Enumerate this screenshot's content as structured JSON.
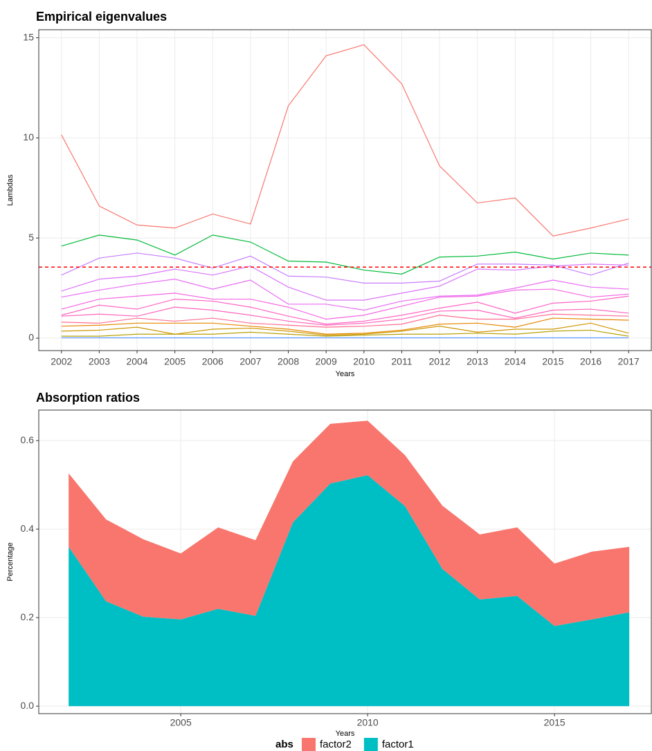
{
  "chart_data": [
    {
      "type": "line",
      "title": "Empirical eigenvalues",
      "x_label": "Years",
      "y_label": "Lambdas",
      "categories": [
        "2002",
        "2003",
        "2004",
        "2005",
        "2006",
        "2007",
        "2008",
        "2009",
        "2010",
        "2011",
        "2012",
        "2013",
        "2014",
        "2015",
        "2016",
        "2017"
      ],
      "ylim": [
        -0.62,
        15.4
      ],
      "yticks": [
        0,
        5,
        10,
        15
      ],
      "grid": true,
      "reference_line": {
        "value": 3.55,
        "color": "#FF0000"
      },
      "series": [
        {
          "color": "#F8766D",
          "values": [
            10.15,
            6.6,
            5.65,
            5.5,
            6.2,
            5.7,
            11.6,
            14.1,
            14.65,
            12.7,
            8.6,
            6.75,
            7.0,
            5.1,
            5.5,
            5.95
          ]
        },
        {
          "color": "#00BA38",
          "values": [
            4.6,
            5.15,
            4.9,
            4.15,
            5.15,
            4.8,
            3.85,
            3.8,
            3.4,
            3.2,
            4.05,
            4.1,
            4.3,
            3.95,
            4.25,
            4.15
          ]
        },
        {
          "color": "#C77CFF",
          "values": [
            3.15,
            4.0,
            4.25,
            4.0,
            3.5,
            4.1,
            3.1,
            3.05,
            2.75,
            2.75,
            2.85,
            3.7,
            3.7,
            3.65,
            3.15,
            3.75
          ]
        },
        {
          "color": "#DA72FB",
          "values": [
            2.35,
            2.95,
            3.1,
            3.45,
            3.15,
            3.6,
            2.55,
            1.9,
            1.9,
            2.25,
            2.6,
            3.45,
            3.4,
            3.6,
            3.7,
            3.65
          ]
        },
        {
          "color": "#E76BF3",
          "values": [
            2.05,
            2.4,
            2.7,
            2.95,
            2.45,
            2.9,
            1.7,
            1.7,
            1.4,
            1.85,
            2.1,
            2.15,
            2.5,
            2.9,
            2.55,
            2.45
          ]
        },
        {
          "color": "#F564E3",
          "values": [
            1.45,
            1.95,
            2.1,
            2.25,
            1.95,
            1.95,
            1.55,
            0.95,
            1.15,
            1.6,
            2.05,
            2.1,
            2.4,
            2.45,
            2.05,
            2.2
          ]
        },
        {
          "color": "#FF61C3",
          "values": [
            1.15,
            1.65,
            1.45,
            1.95,
            1.85,
            1.55,
            1.1,
            0.7,
            0.85,
            1.15,
            1.5,
            1.8,
            1.25,
            1.75,
            1.85,
            2.1
          ]
        },
        {
          "color": "#FF62BC",
          "values": [
            1.1,
            1.2,
            1.1,
            1.55,
            1.4,
            1.15,
            0.85,
            0.65,
            0.75,
            0.95,
            1.35,
            1.4,
            1.0,
            1.4,
            1.45,
            1.25
          ]
        },
        {
          "color": "#FF6C91",
          "values": [
            0.8,
            0.75,
            1.0,
            0.85,
            1.0,
            0.75,
            0.65,
            0.55,
            0.6,
            0.7,
            1.15,
            0.95,
            0.95,
            1.2,
            1.15,
            1.1
          ]
        },
        {
          "color": "#E58700",
          "values": [
            0.6,
            0.65,
            0.75,
            0.75,
            0.75,
            0.6,
            0.45,
            0.2,
            0.25,
            0.4,
            0.7,
            0.75,
            0.55,
            1.0,
            0.95,
            0.9
          ]
        },
        {
          "color": "#CD9600",
          "values": [
            0.35,
            0.4,
            0.55,
            0.2,
            0.45,
            0.5,
            0.35,
            0.15,
            0.2,
            0.35,
            0.6,
            0.3,
            0.45,
            0.45,
            0.75,
            0.25
          ]
        },
        {
          "color": "#B79F00",
          "values": [
            0.1,
            0.1,
            0.2,
            0.2,
            0.2,
            0.3,
            0.2,
            0.1,
            0.15,
            0.2,
            0.2,
            0.25,
            0.2,
            0.35,
            0.4,
            0.1
          ]
        },
        {
          "color": "#619CFF",
          "values": [
            0.02,
            0.02,
            0.02,
            0.02,
            0.02,
            0.02,
            0.02,
            0.02,
            0.02,
            0.02,
            0.02,
            0.02,
            0.02,
            0.02,
            0.02,
            0.02
          ]
        }
      ]
    },
    {
      "type": "stacked_area",
      "title": "Absorption ratios",
      "x_label": "Years",
      "y_label": "Percentage",
      "x": [
        2002,
        2003,
        2004,
        2005,
        2006,
        2007,
        2008,
        2009,
        2010,
        2011,
        2012,
        2013,
        2014,
        2015,
        2016,
        2017
      ],
      "xlim": [
        2001.2,
        2017.59
      ],
      "xticks": [
        2005,
        2010,
        2015
      ],
      "ylim": [
        -0.017,
        0.669
      ],
      "yticks": [
        {
          "value": 0,
          "label": "0.0"
        },
        0.2,
        0.4,
        0.6
      ],
      "grid": true,
      "legend_title": "abs",
      "legend_position": "bottom",
      "series": [
        {
          "name": "factor2",
          "color": "#F8766D",
          "values": [
            0.166,
            0.185,
            0.175,
            0.149,
            0.184,
            0.171,
            0.138,
            0.135,
            0.123,
            0.115,
            0.143,
            0.147,
            0.155,
            0.141,
            0.153,
            0.148
          ]
        },
        {
          "name": "factor1",
          "color": "#00BFC4",
          "values": [
            0.36,
            0.237,
            0.202,
            0.196,
            0.22,
            0.204,
            0.415,
            0.503,
            0.522,
            0.452,
            0.31,
            0.241,
            0.249,
            0.181,
            0.196,
            0.212
          ]
        }
      ]
    }
  ]
}
